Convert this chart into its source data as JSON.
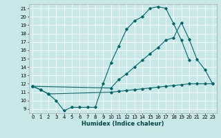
{
  "xlabel": "Humidex (Indice chaleur)",
  "bg_color": "#c8e8e8",
  "grid_color": "#ffffff",
  "line_color": "#006666",
  "xlim": [
    -0.5,
    23.5
  ],
  "ylim": [
    8.5,
    21.5
  ],
  "xticks": [
    0,
    1,
    2,
    3,
    4,
    5,
    6,
    7,
    8,
    9,
    10,
    11,
    12,
    13,
    14,
    15,
    16,
    17,
    18,
    19,
    20,
    21,
    22,
    23
  ],
  "yticks": [
    9,
    10,
    11,
    12,
    13,
    14,
    15,
    16,
    17,
    18,
    19,
    20,
    21
  ],
  "l1x": [
    0,
    1,
    2,
    3,
    4,
    5,
    6,
    7,
    8,
    9,
    10,
    11,
    12,
    13,
    14,
    15,
    16,
    17,
    18,
    19,
    20
  ],
  "l1y": [
    11.7,
    11.3,
    10.8,
    10.0,
    8.8,
    9.2,
    9.2,
    9.2,
    9.2,
    12.0,
    14.5,
    16.5,
    18.5,
    19.5,
    20.0,
    21.0,
    21.2,
    21.0,
    19.2,
    17.2,
    14.8
  ],
  "l2x": [
    0,
    1,
    2,
    10,
    11,
    12,
    13,
    14,
    15,
    16,
    17,
    18,
    19,
    20,
    21,
    22,
    23
  ],
  "l2y": [
    11.7,
    11.3,
    10.8,
    11.0,
    11.1,
    11.2,
    11.3,
    11.4,
    11.5,
    11.6,
    11.7,
    11.8,
    11.9,
    12.0,
    12.0,
    12.0,
    12.0
  ],
  "l3x": [
    0,
    10,
    11,
    12,
    13,
    14,
    15,
    16,
    17,
    18,
    19,
    20,
    21,
    22,
    23
  ],
  "l3y": [
    11.7,
    11.5,
    12.5,
    13.2,
    14.0,
    14.8,
    15.6,
    16.3,
    17.2,
    17.5,
    19.3,
    17.3,
    14.9,
    13.7,
    12.0
  ]
}
